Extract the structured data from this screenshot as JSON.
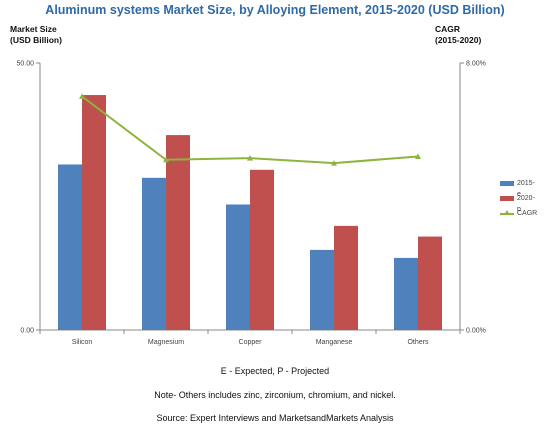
{
  "title": "Aluminum systems Market Size, by Alloying Element, 2015-2020 (USD Billion)",
  "left_axis_title": "Market Size\n(USD Billion)",
  "right_axis_title": "CAGR\n(2015-2020)",
  "notes": {
    "expected": "E - Expected, P - Projected",
    "others": "Note- Others includes zinc, zirconium, chromium, and nickel.",
    "source": "Source: Expert Interviews and MarketsandMarkets Analysis"
  },
  "colors": {
    "series_2015": "#4f81bd",
    "series_2020": "#c0504d",
    "cagr": "#8cb53d",
    "axis": "#888888"
  },
  "chart_data": {
    "type": "bar",
    "categories": [
      "Silicon",
      "Magnesium",
      "Copper",
      "Manganese",
      "Others"
    ],
    "y_ticks": [
      "0.00",
      "50.00"
    ],
    "ylim": [
      0,
      50
    ],
    "y2_ticks": [
      "0.00%",
      "8.00%"
    ],
    "y2lim": [
      0,
      8
    ],
    "series": [
      {
        "name": "2015-e",
        "values": [
          31,
          28.5,
          23.5,
          15,
          13.5
        ]
      },
      {
        "name": "2020-p",
        "values": [
          44,
          36.5,
          30,
          19.5,
          17.5
        ]
      }
    ],
    "line_series": {
      "name": "CAGR",
      "values": [
        7.0,
        5.1,
        5.15,
        5.0,
        5.2
      ]
    },
    "grid": false,
    "legend": "right"
  }
}
